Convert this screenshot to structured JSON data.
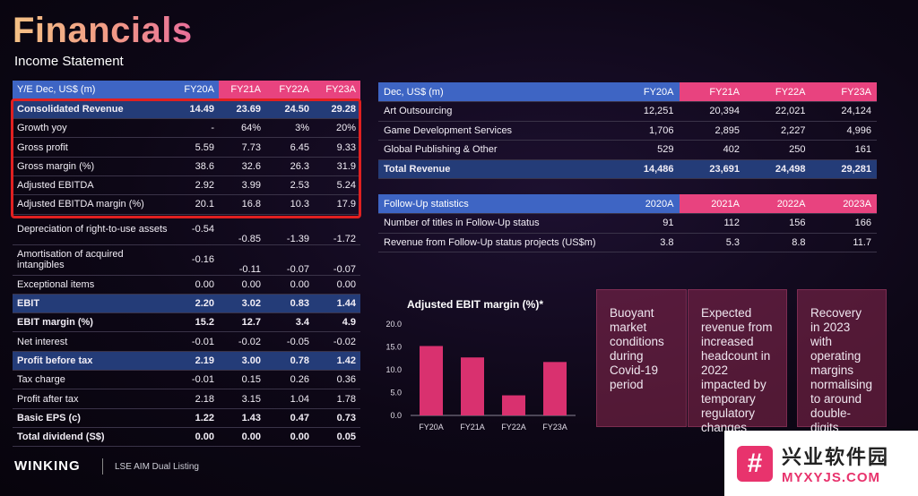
{
  "header": {
    "title": "Financials",
    "subtitle": "Income Statement"
  },
  "income_table": {
    "headers": [
      "Y/E Dec, US$ (m)",
      "FY20A",
      "FY21A",
      "FY22A",
      "FY23A"
    ],
    "rows": [
      {
        "label": "Consolidated Revenue",
        "values": [
          "14.49",
          "23.69",
          "24.50",
          "29.28"
        ],
        "highlight": true
      },
      {
        "label": "Growth yoy",
        "values": [
          "-",
          "64%",
          "3%",
          "20%"
        ]
      },
      {
        "label": "Gross profit",
        "values": [
          "5.59",
          "7.73",
          "6.45",
          "9.33"
        ]
      },
      {
        "label": "Gross margin (%)",
        "values": [
          "38.6",
          "32.6",
          "26.3",
          "31.9"
        ]
      },
      {
        "label": "Adjusted EBITDA",
        "values": [
          "2.92",
          "3.99",
          "2.53",
          "5.24"
        ]
      },
      {
        "label": "Adjusted EBITDA margin (%)",
        "values": [
          "20.1",
          "16.8",
          "10.3",
          "17.9"
        ]
      },
      {
        "label": "Depreciation of right-to-use assets",
        "values": [
          "-0.54",
          "-0.85",
          "-1.39",
          "-1.72"
        ]
      },
      {
        "label": "Amortisation of acquired intangibles",
        "values": [
          "-0.16",
          "-0.11",
          "-0.07",
          "-0.07"
        ]
      },
      {
        "label": "Exceptional items",
        "values": [
          "0.00",
          "0.00",
          "0.00",
          "0.00"
        ]
      },
      {
        "label": "EBIT",
        "values": [
          "2.20",
          "3.02",
          "0.83",
          "1.44"
        ],
        "highlight": true
      },
      {
        "label": "EBIT margin (%)",
        "values": [
          "15.2",
          "12.7",
          "3.4",
          "4.9"
        ],
        "bold": true
      },
      {
        "label": "Net interest",
        "values": [
          "-0.01",
          "-0.02",
          "-0.05",
          "-0.02"
        ]
      },
      {
        "label": "Profit before tax",
        "values": [
          "2.19",
          "3.00",
          "0.78",
          "1.42"
        ],
        "highlight": true
      },
      {
        "label": "Tax charge",
        "values": [
          "-0.01",
          "0.15",
          "0.26",
          "0.36"
        ]
      },
      {
        "label": "Profit after tax",
        "values": [
          "2.18",
          "3.15",
          "1.04",
          "1.78"
        ]
      },
      {
        "label": "Basic EPS (c)",
        "values": [
          "1.22",
          "1.43",
          "0.47",
          "0.73"
        ],
        "bold": true
      },
      {
        "label": "Total dividend (S$)",
        "values": [
          "0.00",
          "0.00",
          "0.00",
          "0.05"
        ],
        "bold": true
      }
    ]
  },
  "revenue_table": {
    "headers": [
      "Dec, US$ (m)",
      "FY20A",
      "FY21A",
      "FY22A",
      "FY23A"
    ],
    "rows": [
      {
        "label": "Art Outsourcing",
        "values": [
          "12,251",
          "20,394",
          "22,021",
          "24,124"
        ]
      },
      {
        "label": "Game Development Services",
        "values": [
          "1,706",
          "2,895",
          "2,227",
          "4,996"
        ]
      },
      {
        "label": "Global Publishing & Other",
        "values": [
          "529",
          "402",
          "250",
          "161"
        ]
      },
      {
        "label": "Total Revenue",
        "values": [
          "14,486",
          "23,691",
          "24,498",
          "29,281"
        ],
        "highlight": true
      }
    ]
  },
  "followup_table": {
    "headers": [
      "Follow-Up statistics",
      "2020A",
      "2021A",
      "2022A",
      "2023A"
    ],
    "rows": [
      {
        "label": "Number of titles in Follow-Up status",
        "values": [
          "91",
          "112",
          "156",
          "166"
        ]
      },
      {
        "label": "Revenue from Follow-Up status projects (US$m)",
        "values": [
          "3.8",
          "5.3",
          "8.8",
          "11.7"
        ]
      }
    ]
  },
  "chart_data": {
    "type": "bar",
    "title": "Adjusted EBIT margin (%)*",
    "categories": [
      "FY20A",
      "FY21A",
      "FY22A",
      "FY23A"
    ],
    "values": [
      15.2,
      12.7,
      4.4,
      11.7
    ],
    "yticks": [
      "20.0",
      "15.0",
      "10.0",
      "5.0",
      "0.0"
    ],
    "ylim": [
      0,
      20
    ],
    "bar_color": "#d9316f",
    "grid": false
  },
  "commentary": [
    "Buoyant market conditions during Covid-19 period",
    "Expected revenue from increased headcount in 2022 impacted by temporary regulatory changes",
    "Recovery in 2023 with operating margins normalising to around double-digits"
  ],
  "footer": {
    "logo": "WINKING",
    "listing": "LSE AIM Dual Listing"
  },
  "watermark": {
    "icon": "#",
    "cn": "兴业软件园",
    "en": "MYXYJS.COM"
  }
}
